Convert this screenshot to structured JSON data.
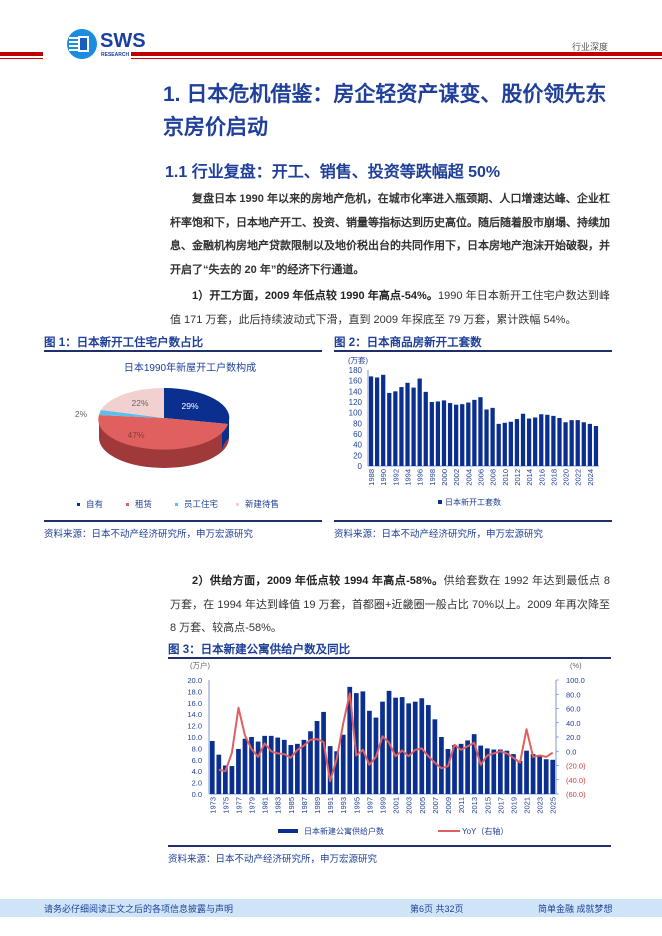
{
  "header": {
    "logo_text": "SWS",
    "logo_sub": "RESEARCH",
    "tag": "行业深度",
    "brand_color": "#c00000"
  },
  "section": {
    "title": "1. 日本危机借鉴：房企轻资产谋变、股价领先东京房价启动",
    "subtitle": "1.1 行业复盘：开工、销售、投资等跌幅超 50%"
  },
  "paragraphs": {
    "p1": "复盘日本 1990 年以来的房地产危机，在城市化率进入瓶颈期、人口增速达峰、企业杠杆率饱和下，日本地产开工、投资、销量等指标达到历史高位。随后随着股市崩塌、持续加息、金融机构房地产贷款限制以及地价税出台的共同作用下，日本房地产泡沫开始破裂，并开启了“失去的 20 年”的经济下行通道。",
    "p2_bold": "1）开工方面，2009 年低点较 1990 年高点-54%。",
    "p2_rest": "1990 年日本新开工住宅户数达到峰值 171 万套，此后持续波动式下滑，直到 2009 年探底至 79 万套，累计跌幅 54%。",
    "p3_bold": "2）供给方面，2009 年低点较 1994 年高点-58%。",
    "p3_rest": "供给套数在 1992 年达到最低点 8 万套，在 1994 年达到峰值 19 万套，首都圈+近畿圈一般占比 70%以上。2009 年再次降至 8 万套、较高点-58%。"
  },
  "figures": {
    "fig1": {
      "label": "图 1：日本新开工住宅户数占比",
      "source": "资料来源：日本不动产经济研究所，申万宏源研究"
    },
    "fig2": {
      "label": "图 2：日本商品房新开工套数",
      "source": "资料来源：日本不动产经济研究所，申万宏源研究"
    },
    "fig3": {
      "label": "图 3：日本新建公寓供给户数及同比",
      "source": "资料来源：日本不动产经济研究所，申万宏源研究"
    }
  },
  "chart_data": [
    {
      "type": "pie",
      "title": "日本1990年新屋开工户数构成",
      "categories": [
        "自有",
        "租赁",
        "员工住宅",
        "新建待售"
      ],
      "values": [
        29,
        47,
        2,
        22
      ],
      "labels": [
        "29%",
        "47%",
        "2%",
        "22%"
      ],
      "colors": [
        "#0b2f8f",
        "#e06060",
        "#5bc0eb",
        "#f2d0d0"
      ],
      "legend_position": "bottom"
    },
    {
      "type": "bar",
      "title": "",
      "ylabel": "(万套)",
      "ylim": [
        0,
        180
      ],
      "yticks": [
        0,
        20,
        40,
        60,
        80,
        100,
        120,
        140,
        160,
        180
      ],
      "categories": [
        "1988",
        "1989",
        "1990",
        "1991",
        "1992",
        "1993",
        "1994",
        "1995",
        "1996",
        "1997",
        "1998",
        "1999",
        "2000",
        "2001",
        "2002",
        "2003",
        "2004",
        "2005",
        "2006",
        "2007",
        "2008",
        "2009",
        "2010",
        "2011",
        "2012",
        "2013",
        "2014",
        "2015",
        "2016",
        "2017",
        "2018",
        "2019",
        "2020",
        "2021",
        "2022",
        "2023",
        "2024",
        "2025"
      ],
      "xtick_labels": [
        "1988",
        "1990",
        "1992",
        "1994",
        "1996",
        "1998",
        "2000",
        "2002",
        "2004",
        "2006",
        "2008",
        "2010",
        "2012",
        "2014",
        "2016",
        "2018",
        "2020",
        "2022",
        "2024"
      ],
      "series": [
        {
          "name": "日本新开工套数",
          "color": "#0b2f8f",
          "values": [
            168,
            166,
            171,
            137,
            140,
            148,
            156,
            147,
            164,
            139,
            120,
            121,
            123,
            118,
            115,
            116,
            119,
            124,
            129,
            106,
            109,
            79,
            81,
            83,
            88,
            98,
            89,
            91,
            97,
            96,
            94,
            90,
            82,
            86,
            86,
            82,
            79,
            75
          ]
        }
      ],
      "legend_position": "bottom",
      "grid": false
    },
    {
      "type": "bar",
      "title": "",
      "ylabel": "(万户)",
      "y2label": "(%)",
      "ylim": [
        0,
        20
      ],
      "y2lim": [
        -60,
        100
      ],
      "yticks": [
        "0.0",
        "2.0",
        "4.0",
        "6.0",
        "8.0",
        "10.0",
        "12.0",
        "14.0",
        "16.0",
        "18.0",
        "20.0"
      ],
      "y2ticks": [
        "(60.0)",
        "(40.0)",
        "(20.0)",
        "0.0",
        "20.0",
        "40.0",
        "60.0",
        "80.0",
        "100.0"
      ],
      "categories": [
        "1973",
        "1974",
        "1975",
        "1976",
        "1977",
        "1978",
        "1979",
        "1980",
        "1981",
        "1982",
        "1983",
        "1984",
        "1985",
        "1986",
        "1987",
        "1988",
        "1989",
        "1990",
        "1991",
        "1992",
        "1993",
        "1994",
        "1995",
        "1996",
        "1997",
        "1998",
        "1999",
        "2000",
        "2001",
        "2002",
        "2003",
        "2004",
        "2005",
        "2006",
        "2007",
        "2008",
        "2009",
        "2010",
        "2011",
        "2012",
        "2013",
        "2014",
        "2015",
        "2016",
        "2017",
        "2018",
        "2019",
        "2020",
        "2021",
        "2022",
        "2023",
        "2024",
        "2025"
      ],
      "series": [
        {
          "name": "日本新建公寓供给户数",
          "type": "bar",
          "axis": "left",
          "color": "#0b2f8f",
          "values": [
            9.3,
            6.9,
            5.0,
            4.9,
            7.9,
            9.7,
            10.0,
            9.2,
            10.2,
            10.2,
            9.9,
            9.5,
            8.6,
            8.8,
            9.5,
            11.0,
            12.8,
            14.4,
            8.4,
            7.5,
            10.4,
            18.8,
            17.7,
            18.0,
            14.6,
            13.4,
            16.2,
            18.1,
            16.9,
            17.0,
            15.9,
            16.2,
            16.8,
            15.6,
            13.1,
            10.0,
            7.9,
            8.6,
            8.8,
            9.4,
            10.5,
            8.5,
            8.0,
            7.8,
            7.8,
            7.6,
            7.0,
            5.8,
            7.6,
            7.0,
            6.6,
            6.1,
            6.0
          ]
        },
        {
          "name": "YoY（右轴）",
          "type": "line",
          "axis": "right",
          "color": "#e06060",
          "values": [
            null,
            -26,
            -28,
            -2,
            61,
            22,
            3,
            -8,
            11,
            0,
            -3,
            -4,
            -9,
            2,
            8,
            16,
            17,
            13,
            -42,
            -11,
            39,
            81,
            -6,
            2,
            -19,
            -8,
            21,
            12,
            -7,
            1,
            -7,
            2,
            4,
            -7,
            -16,
            -24,
            -21,
            9,
            2,
            7,
            12,
            -19,
            -6,
            -3,
            0,
            -3,
            -9,
            -16,
            31,
            -8,
            -6,
            -8,
            -2
          ]
        }
      ],
      "legend_position": "bottom"
    }
  ],
  "footer": {
    "disclaimer": "请务必仔细阅读正文之后的各项信息披露与声明",
    "page": "第6页 共32页",
    "slogan": "简单金融 成就梦想"
  }
}
